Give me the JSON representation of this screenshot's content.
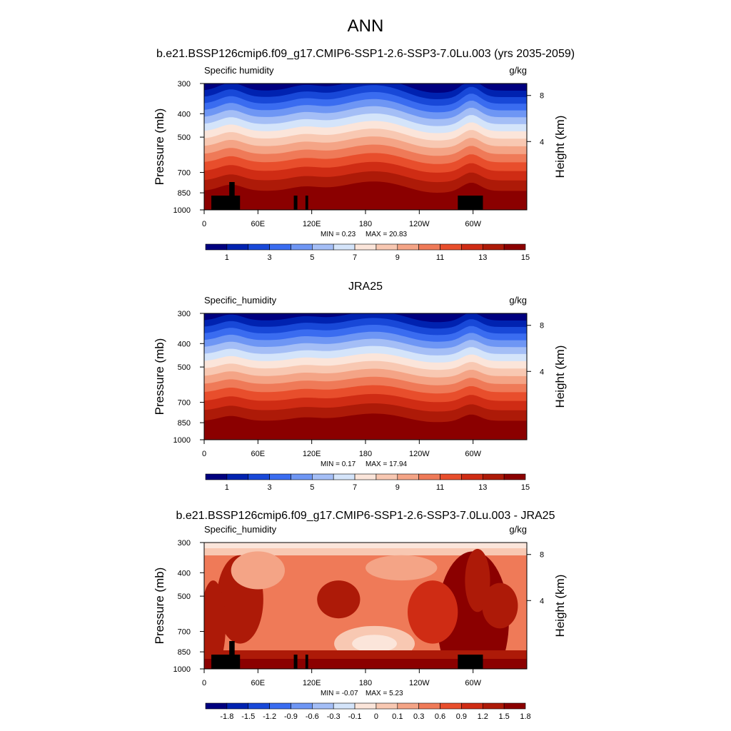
{
  "figure": {
    "title": "ANN",
    "subtitle": "b.e21.BSSP126cmip6.f09_g17.CMIP6-SSP1-2.6-SSP3-7.0Lu.003 (yrs 2035-2059)"
  },
  "chart_data": [
    {
      "type": "heatmap",
      "title": "",
      "left_label": "Specific humidity",
      "units": "g/kg",
      "ylabel": "Pressure (mb)",
      "ylabel_right": "Height (km)",
      "x_ticks": [
        "0",
        "60E",
        "120E",
        "180",
        "120W",
        "60W"
      ],
      "y_ticks": [
        "300",
        "400",
        "500",
        "700",
        "850",
        "1000"
      ],
      "y_right_ticks": [
        "8",
        "4"
      ],
      "min_label": "MIN =   0.23",
      "max_label": "MAX =  20.83",
      "min": 0.23,
      "max": 20.83,
      "colorbar_ticks": [
        "1",
        "3",
        "5",
        "7",
        "9",
        "11",
        "13",
        "15"
      ],
      "colorbar_colors": [
        "#00007f",
        "#0022b0",
        "#1848d8",
        "#3a6cf0",
        "#6e96f4",
        "#a4bef6",
        "#d4e4fa",
        "#fbe5da",
        "#f8c8b2",
        "#f4a486",
        "#ef7a58",
        "#e84e2c",
        "#cf2c14",
        "#ad1a08",
        "#8b0000"
      ],
      "masking": "black topography blocks present"
    },
    {
      "type": "heatmap",
      "title": "JRA25",
      "left_label": "Specific_humidity",
      "units": "g/kg",
      "ylabel": "Pressure (mb)",
      "ylabel_right": "Height (km)",
      "x_ticks": [
        "0",
        "60E",
        "120E",
        "180",
        "120W",
        "60W"
      ],
      "y_ticks": [
        "300",
        "400",
        "500",
        "700",
        "850",
        "1000"
      ],
      "y_right_ticks": [
        "8",
        "4"
      ],
      "min_label": "MIN =   0.17",
      "max_label": "MAX =  17.94",
      "min": 0.17,
      "max": 17.94,
      "colorbar_ticks": [
        "1",
        "3",
        "5",
        "7",
        "9",
        "11",
        "13",
        "15"
      ],
      "colorbar_colors": [
        "#00007f",
        "#0022b0",
        "#1848d8",
        "#3a6cf0",
        "#6e96f4",
        "#a4bef6",
        "#d4e4fa",
        "#fbe5da",
        "#f8c8b2",
        "#f4a486",
        "#ef7a58",
        "#e84e2c",
        "#cf2c14",
        "#ad1a08",
        "#8b0000"
      ],
      "masking": "none"
    },
    {
      "type": "heatmap",
      "title": "b.e21.BSSP126cmip6.f09_g17.CMIP6-SSP1-2.6-SSP3-7.0Lu.003 - JRA25",
      "left_label": "Specific_humidity",
      "units": "g/kg",
      "ylabel": "Pressure (mb)",
      "ylabel_right": "Height (km)",
      "x_ticks": [
        "0",
        "60E",
        "120E",
        "180",
        "120W",
        "60W"
      ],
      "y_ticks": [
        "300",
        "400",
        "500",
        "700",
        "850",
        "1000"
      ],
      "y_right_ticks": [
        "8",
        "4"
      ],
      "min_label": "MIN =  -0.07",
      "max_label": "MAX =   5.23",
      "min": -0.07,
      "max": 5.23,
      "colorbar_ticks": [
        "-1.8",
        "-1.5",
        "-1.2",
        "-0.9",
        "-0.6",
        "-0.3",
        "-0.1",
        "0",
        "0.1",
        "0.3",
        "0.6",
        "0.9",
        "1.2",
        "1.5",
        "1.8"
      ],
      "colorbar_colors": [
        "#00007f",
        "#0022b0",
        "#1848d8",
        "#3a6cf0",
        "#6e96f4",
        "#a4bef6",
        "#d4e4fa",
        "#fbe5da",
        "#f8c8b2",
        "#f4a486",
        "#ef7a58",
        "#e84e2c",
        "#cf2c14",
        "#ad1a08",
        "#8b0000"
      ],
      "masking": "black topography blocks present"
    }
  ]
}
